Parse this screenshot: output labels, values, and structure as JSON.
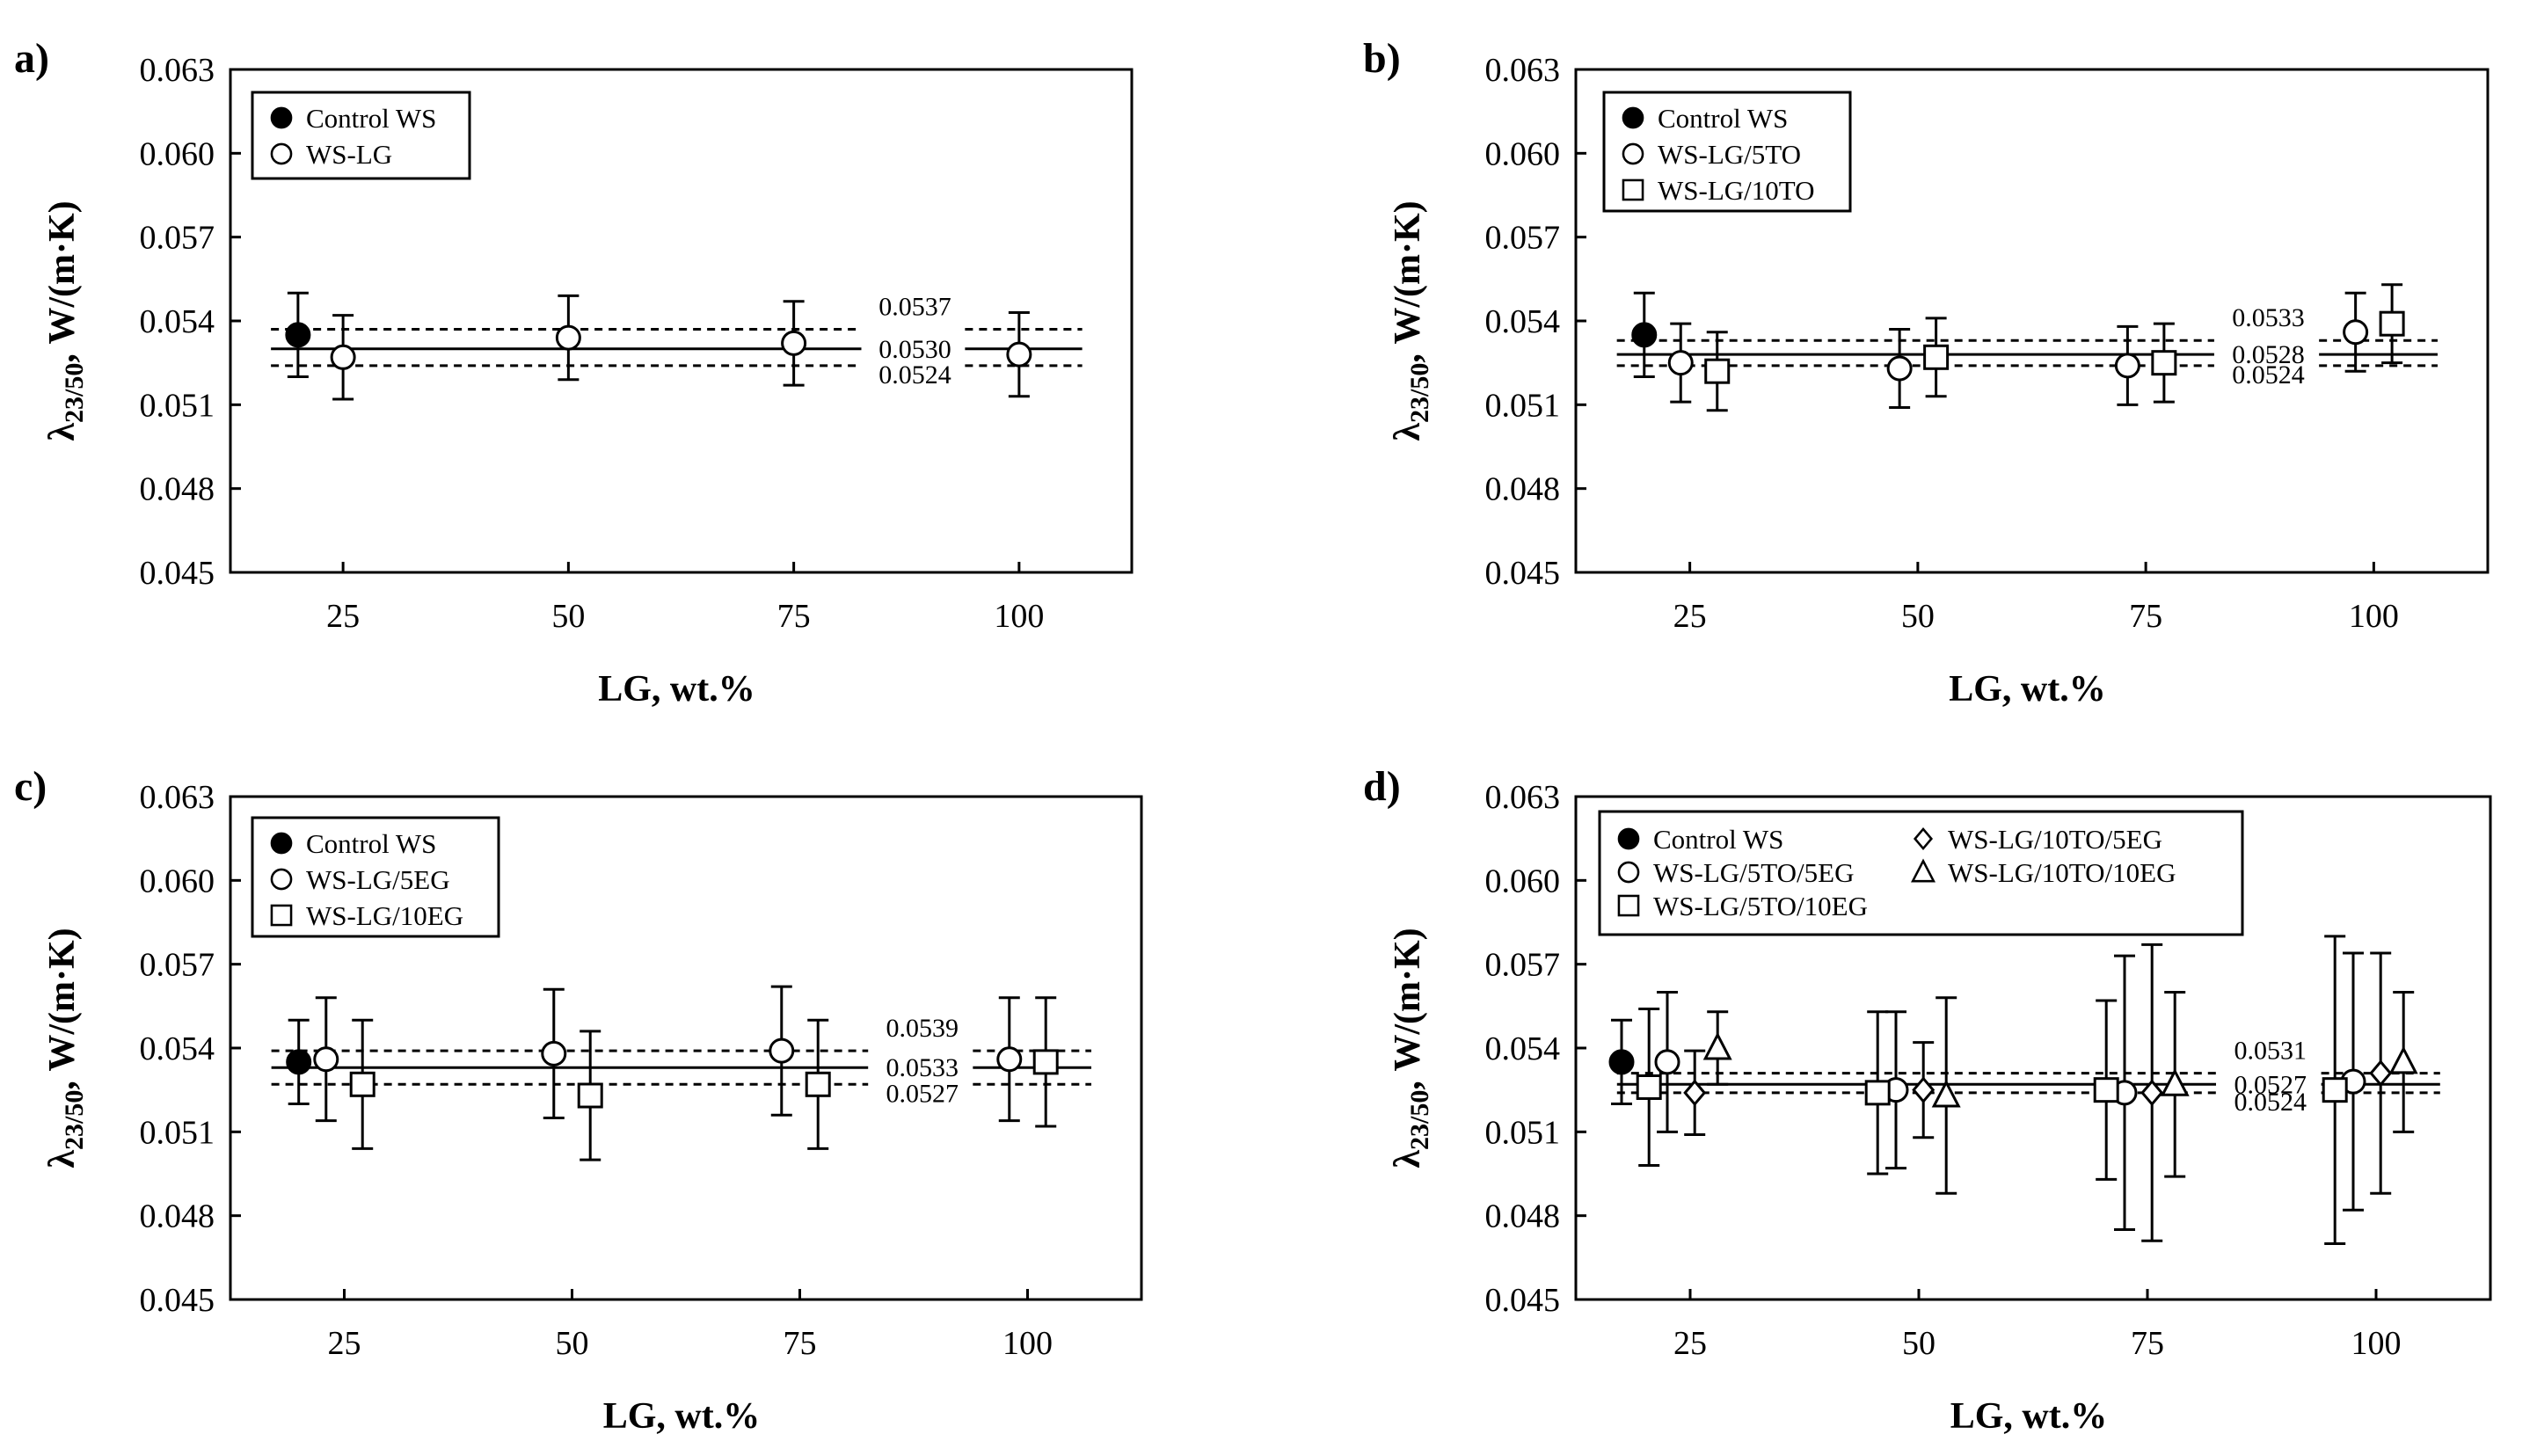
{
  "figure": {
    "ylabel_base": "λ",
    "ylabel_sub": "23/50",
    "ylabel_unit": ", W/(m·K)"
  },
  "chart_data": [
    {
      "type": "scatter",
      "panel_label": "a)",
      "xlabel": "LG, wt.%",
      "ylabel": "λ23/50, W/(m·K)",
      "ylim": [
        0.045,
        0.063
      ],
      "yticks": [
        "0.045",
        "0.048",
        "0.051",
        "0.054",
        "0.057",
        "0.060",
        "0.063"
      ],
      "xticks": [
        "25",
        "50",
        "75",
        "100"
      ],
      "legend_position": "top-left",
      "series": [
        {
          "name": "Control WS",
          "marker": "filled-circle",
          "x": [
            20
          ],
          "y": [
            0.0535
          ],
          "err": [
            0.0015
          ]
        },
        {
          "name": "WS-LG",
          "marker": "circle",
          "x": [
            25,
            50,
            75,
            100
          ],
          "y": [
            0.0527,
            0.0534,
            0.0532,
            0.0528
          ],
          "err": [
            0.0015,
            0.0015,
            0.0015,
            0.0015
          ]
        }
      ],
      "reference_lines": [
        {
          "label": "0.0537",
          "value": 0.0537,
          "style": "dashed"
        },
        {
          "label": "0.0530",
          "value": 0.053,
          "style": "solid"
        },
        {
          "label": "0.0524",
          "value": 0.0524,
          "style": "dashed"
        }
      ]
    },
    {
      "type": "scatter",
      "panel_label": "b)",
      "xlabel": "LG, wt.%",
      "ylabel": "λ23/50, W/(m·K)",
      "ylim": [
        0.045,
        0.063
      ],
      "yticks": [
        "0.045",
        "0.048",
        "0.051",
        "0.054",
        "0.057",
        "0.060",
        "0.063"
      ],
      "xticks": [
        "25",
        "50",
        "75",
        "100"
      ],
      "legend_position": "top-left",
      "series": [
        {
          "name": "Control WS",
          "marker": "filled-circle",
          "x": [
            20
          ],
          "y": [
            0.0535
          ],
          "err": [
            0.0015
          ]
        },
        {
          "name": "WS-LG/5TO",
          "marker": "circle",
          "x": [
            24,
            48,
            73,
            98
          ],
          "y": [
            0.0525,
            0.0523,
            0.0524,
            0.0536
          ],
          "err": [
            0.0014,
            0.0014,
            0.0014,
            0.0014
          ]
        },
        {
          "name": "WS-LG/10TO",
          "marker": "square",
          "x": [
            28,
            52,
            77,
            102
          ],
          "y": [
            0.0522,
            0.0527,
            0.0525,
            0.0539
          ],
          "err": [
            0.0014,
            0.0014,
            0.0014,
            0.0014
          ]
        }
      ],
      "reference_lines": [
        {
          "label": "0.0533",
          "value": 0.0533,
          "style": "dashed"
        },
        {
          "label": "0.0528",
          "value": 0.0528,
          "style": "solid"
        },
        {
          "label": "0.0524",
          "value": 0.0524,
          "style": "dashed"
        }
      ]
    },
    {
      "type": "scatter",
      "panel_label": "c)",
      "xlabel": "LG, wt.%",
      "ylabel": "λ23/50, W/(m·K)",
      "ylim": [
        0.045,
        0.063
      ],
      "yticks": [
        "0.045",
        "0.048",
        "0.051",
        "0.054",
        "0.057",
        "0.060",
        "0.063"
      ],
      "xticks": [
        "25",
        "50",
        "75",
        "100"
      ],
      "legend_position": "top-left",
      "series": [
        {
          "name": "Control WS",
          "marker": "filled-circle",
          "x": [
            20
          ],
          "y": [
            0.0535
          ],
          "err": [
            0.0015
          ]
        },
        {
          "name": "WS-LG/5EG",
          "marker": "circle",
          "x": [
            23,
            48,
            73,
            98
          ],
          "y": [
            0.0536,
            0.0538,
            0.0539,
            0.0536
          ],
          "err": [
            0.0022,
            0.0023,
            0.0023,
            0.0022
          ]
        },
        {
          "name": "WS-LG/10EG",
          "marker": "square",
          "x": [
            27,
            52,
            77,
            102
          ],
          "y": [
            0.0527,
            0.0523,
            0.0527,
            0.0535
          ],
          "err": [
            0.0023,
            0.0023,
            0.0023,
            0.0023
          ]
        }
      ],
      "reference_lines": [
        {
          "label": "0.0539",
          "value": 0.0539,
          "style": "dashed"
        },
        {
          "label": "0.0533",
          "value": 0.0533,
          "style": "solid"
        },
        {
          "label": "0.0527",
          "value": 0.0527,
          "style": "dashed"
        }
      ]
    },
    {
      "type": "scatter",
      "panel_label": "d)",
      "xlabel": "LG, wt.%",
      "ylabel": "λ23/50, W/(m·K)",
      "ylim": [
        0.045,
        0.063
      ],
      "yticks": [
        "0.045",
        "0.048",
        "0.051",
        "0.054",
        "0.057",
        "0.060",
        "0.063"
      ],
      "xticks": [
        "25",
        "50",
        "75",
        "100"
      ],
      "legend_position": "top-left",
      "series": [
        {
          "name": "Control WS",
          "marker": "filled-circle",
          "x": [
            17.5
          ],
          "y": [
            0.0535
          ],
          "err": [
            0.0015
          ]
        },
        {
          "name": "WS-LG/5TO/5EG",
          "marker": "circle",
          "x": [
            22.5,
            47.5,
            72.5,
            97.5
          ],
          "y": [
            0.0535,
            0.0525,
            0.0524,
            0.0528
          ],
          "err": [
            0.0025,
            0.0028,
            0.0049,
            0.0046
          ]
        },
        {
          "name": "WS-LG/5TO/10EG",
          "marker": "square",
          "x": [
            20.5,
            45.5,
            70.5,
            95.5
          ],
          "y": [
            0.0526,
            0.0524,
            0.0525,
            0.0525
          ],
          "err": [
            0.0028,
            0.0029,
            0.0032,
            0.0055
          ]
        },
        {
          "name": "WS-LG/10TO/5EG",
          "marker": "diamond",
          "x": [
            25.5,
            50.5,
            75.5,
            100.5
          ],
          "y": [
            0.0524,
            0.0525,
            0.0524,
            0.0531
          ],
          "err": [
            0.0015,
            0.0017,
            0.0053,
            0.0043
          ]
        },
        {
          "name": "WS-LG/10TO/10EG",
          "marker": "triangle",
          "x": [
            28,
            53,
            78,
            103
          ],
          "y": [
            0.054,
            0.0523,
            0.0527,
            0.0535
          ],
          "err": [
            0.0013,
            0.0035,
            0.0033,
            0.0025
          ]
        }
      ],
      "reference_lines": [
        {
          "label": "0.0531",
          "value": 0.0531,
          "style": "dashed"
        },
        {
          "label": "0.0527",
          "value": 0.0527,
          "style": "solid"
        },
        {
          "label": "0.0524",
          "value": 0.0524,
          "style": "dashed"
        }
      ]
    }
  ]
}
